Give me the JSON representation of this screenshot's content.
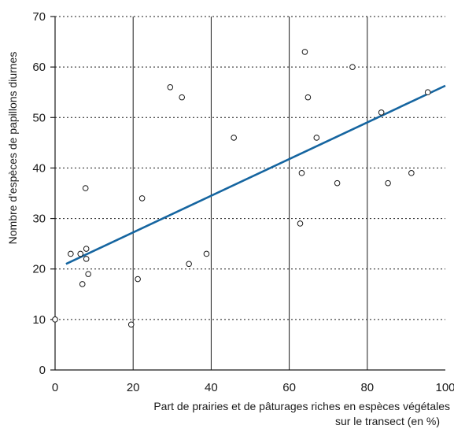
{
  "chart_data": {
    "type": "scatter",
    "title": "",
    "xlabel_line1": "Part de prairies et de pâturages riches en espèces végétales",
    "xlabel_line2": "sur le transect (en %)",
    "ylabel": "Nombre d'espèces de papillons diurnes",
    "xlim": [
      0,
      100
    ],
    "ylim": [
      0,
      70
    ],
    "x_ticks": [
      0,
      20,
      40,
      60,
      80,
      100
    ],
    "y_ticks": [
      0,
      10,
      20,
      30,
      40,
      50,
      60,
      70
    ],
    "vertical_grid": "solid",
    "horizontal_grid": "dotted",
    "points": [
      {
        "x": 0,
        "y": 10
      },
      {
        "x": 4,
        "y": 23
      },
      {
        "x": 6.5,
        "y": 23
      },
      {
        "x": 7,
        "y": 17
      },
      {
        "x": 7.8,
        "y": 36
      },
      {
        "x": 8,
        "y": 24
      },
      {
        "x": 8,
        "y": 22
      },
      {
        "x": 8.5,
        "y": 19
      },
      {
        "x": 19.5,
        "y": 9
      },
      {
        "x": 21.2,
        "y": 18
      },
      {
        "x": 22.3,
        "y": 34
      },
      {
        "x": 29.5,
        "y": 56
      },
      {
        "x": 32.5,
        "y": 54
      },
      {
        "x": 34.3,
        "y": 21
      },
      {
        "x": 38.8,
        "y": 23
      },
      {
        "x": 45.8,
        "y": 46
      },
      {
        "x": 62.8,
        "y": 29
      },
      {
        "x": 63.2,
        "y": 39
      },
      {
        "x": 64,
        "y": 63
      },
      {
        "x": 64.8,
        "y": 54
      },
      {
        "x": 67,
        "y": 46
      },
      {
        "x": 72.3,
        "y": 37
      },
      {
        "x": 76.2,
        "y": 60
      },
      {
        "x": 83.6,
        "y": 51
      },
      {
        "x": 85.3,
        "y": 37
      },
      {
        "x": 91.3,
        "y": 39
      },
      {
        "x": 95.5,
        "y": 55
      }
    ],
    "trend_line": {
      "x": [
        2.8,
        100
      ],
      "y": [
        21,
        56.3
      ]
    },
    "colors": {
      "trend_line": "#1565a0",
      "points": "#1a1a1a",
      "grid": "#1a1a1a"
    }
  }
}
